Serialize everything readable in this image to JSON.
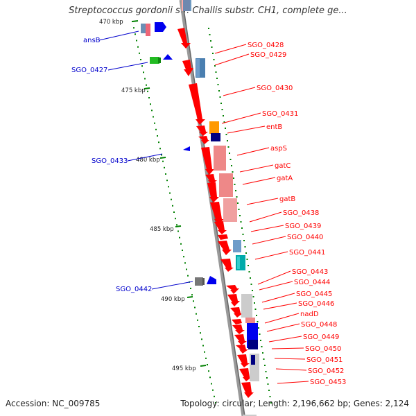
{
  "title": "Streptococcus gordonii str. Challis substr. CH1, complete ge...",
  "footer": {
    "accession": "Accession: NC_009785",
    "info": "Topology: circular; Length: 2,196,662 bp; Genes: 2,124"
  },
  "kbp_ticks": [
    "470 kbp",
    "475 kbp",
    "480 kbp",
    "485 kbp",
    "490 kbp",
    "495 kbp"
  ],
  "left_labels": [
    "ansB",
    "SGO_0427",
    "SGO_0433",
    "SGO_0442"
  ],
  "right_labels": [
    "SGO_0428",
    "SGO_0429",
    "SGO_0430",
    "SGO_0431",
    "entB",
    "aspS",
    "gatC",
    "gatA",
    "gatB",
    "SGO_0438",
    "SGO_0439",
    "SGO_0440",
    "SGO_0441",
    "SGO_0443",
    "SGO_0444",
    "SGO_0445",
    "SGO_0446",
    "nadD",
    "SGO_0448",
    "SGO_0449",
    "SGO_0450",
    "SGO_0451",
    "SGO_0452",
    "SGO_0453"
  ],
  "colors": {
    "gene_label": "#ff0000",
    "left_label": "#0000cc",
    "backbone": "#888888",
    "tick": "#008000"
  }
}
